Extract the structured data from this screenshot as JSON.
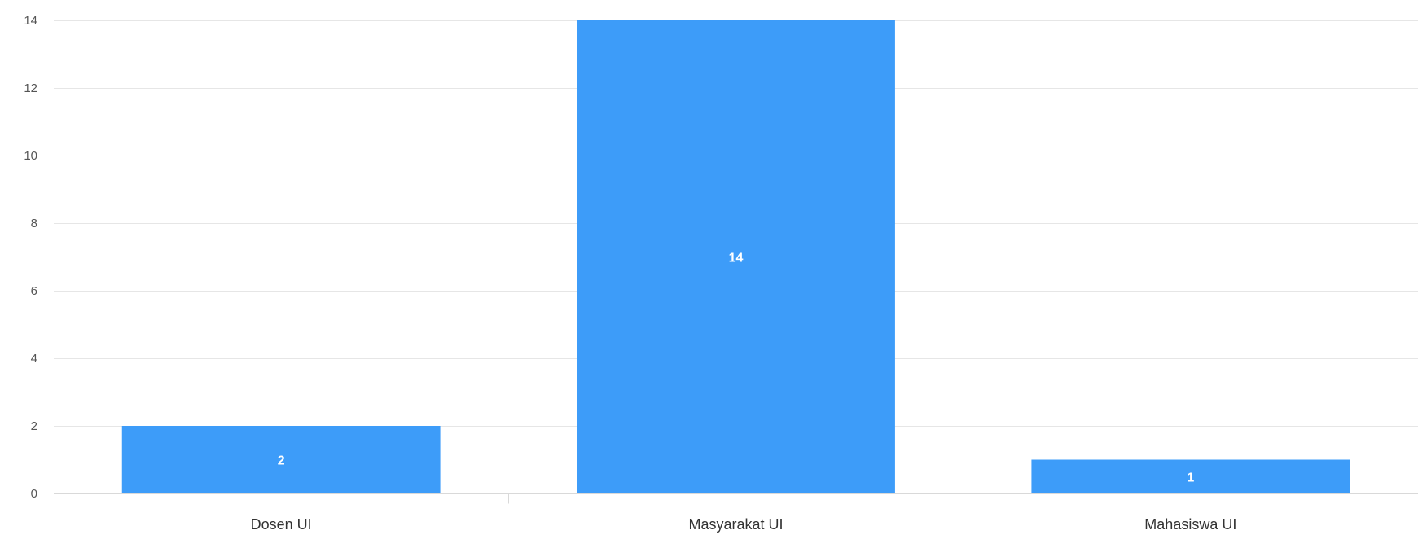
{
  "chart_data": {
    "type": "bar",
    "categories": [
      "Dosen UI",
      "Masyarakat UI",
      "Mahasiswa UI"
    ],
    "series": [
      {
        "values": [
          2,
          14,
          1
        ],
        "color": "#3d9cf9"
      }
    ],
    "data_labels": [
      "2",
      "14",
      "1"
    ],
    "y_ticks": [
      "0",
      "2",
      "4",
      "6",
      "8",
      "10",
      "12",
      "14"
    ],
    "ylim": [
      0,
      14
    ],
    "grid": true,
    "legend": "none",
    "title": "",
    "xlabel": "",
    "ylabel": ""
  }
}
